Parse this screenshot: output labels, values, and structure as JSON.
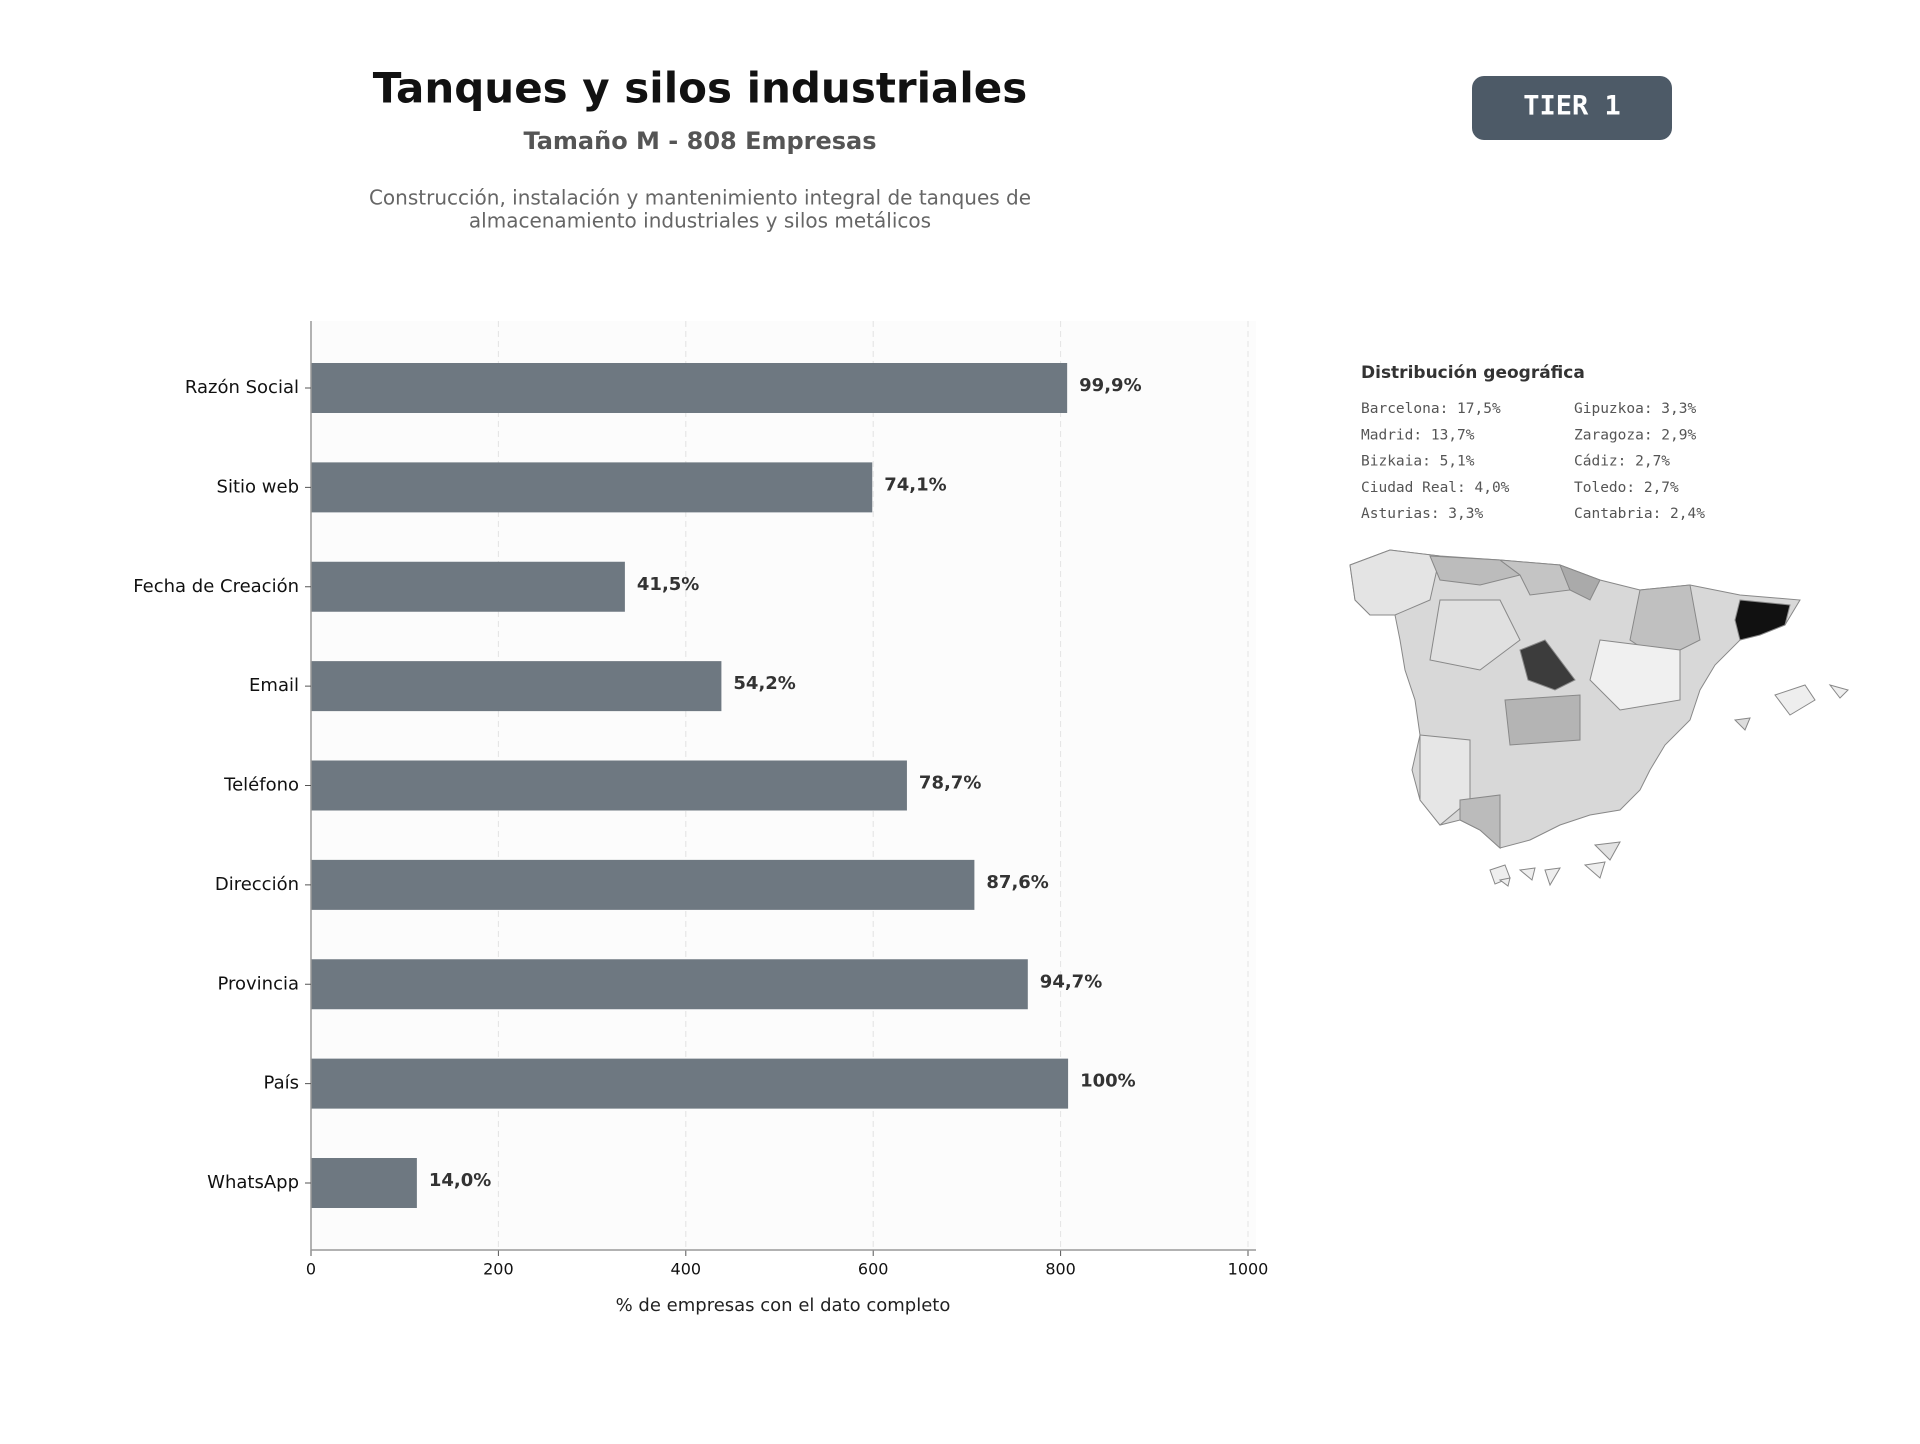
{
  "chart_data": {
    "type": "barh",
    "title": "Tanques y silos industriales",
    "subtitle": "Tamaño M - 808 Empresas",
    "description": [
      "Construcción, instalación y mantenimiento integral de tanques de",
      "almacenamiento industriales y silos metálicos"
    ],
    "badge": "TIER 1",
    "xlabel": "% de empresas con el dato completo",
    "categories": [
      "Razón Social",
      "Sitio web",
      "Fecha de Creación",
      "Email",
      "Teléfono",
      "Dirección",
      "Provincia",
      "País",
      "WhatsApp"
    ],
    "values": [
      807,
      599,
      335,
      438,
      636,
      708,
      765,
      808,
      113
    ],
    "value_labels": [
      "99,9%",
      "74,1%",
      "41,5%",
      "54,2%",
      "78,7%",
      "87,6%",
      "94,7%",
      "100%",
      "14,0%"
    ],
    "color": "#6e7881",
    "xlim": [
      0,
      1000
    ],
    "xticks": [
      0,
      200,
      400,
      600,
      800,
      1000
    ],
    "grid": true,
    "geo": {
      "title": "Distribución geográfica",
      "items": [
        "Barcelona: 17,5%",
        "Madrid: 13,7%",
        "Bizkaia: 5,1%",
        "Ciudad Real: 4,0%",
        "Asturias: 3,3%",
        "Gipuzkoa: 3,3%",
        "Zaragoza: 2,9%",
        "Cádiz: 2,7%",
        "Toledo: 2,7%",
        "Cantabria: 2,4%"
      ]
    }
  }
}
